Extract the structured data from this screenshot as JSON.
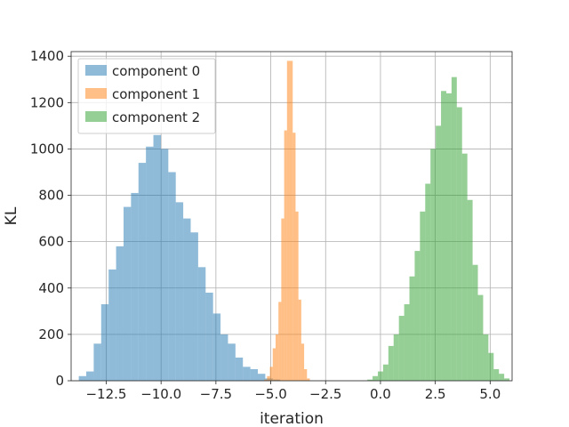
{
  "chart_data": {
    "type": "bar",
    "title": "",
    "xlabel": "iteration",
    "ylabel": "KL",
    "xlim": [
      -14.1,
      6.0
    ],
    "ylim": [
      0,
      1420
    ],
    "grid": true,
    "legend_placement": "top-left",
    "xticks": [
      -12.5,
      -10.0,
      -7.5,
      -5.0,
      -2.5,
      0.0,
      2.5,
      5.0
    ],
    "xtick_labels": [
      "−12.5",
      "−10.0",
      "−7.5",
      "−5.0",
      "−2.5",
      "0.0",
      "2.5",
      "5.0"
    ],
    "yticks": [
      0,
      200,
      400,
      600,
      800,
      1000,
      1200,
      1400
    ],
    "ytick_labels": [
      "0",
      "200",
      "400",
      "600",
      "800",
      "1000",
      "1200",
      "1400"
    ],
    "series": [
      {
        "name": "component 0",
        "color": "#1f77b4",
        "bin_start": -13.75,
        "bin_width": 0.34,
        "counts": [
          20,
          40,
          160,
          330,
          480,
          580,
          750,
          810,
          940,
          1010,
          1060,
          1000,
          900,
          770,
          700,
          640,
          490,
          380,
          290,
          200,
          160,
          100,
          60,
          50,
          30,
          10,
          5
        ]
      },
      {
        "name": "component 1",
        "color": "#ff7f0e",
        "bin_start": -5.3,
        "bin_width": 0.13,
        "counts": [
          5,
          20,
          60,
          140,
          200,
          340,
          700,
          1080,
          1380,
          1380,
          1070,
          730,
          350,
          160,
          50,
          10
        ]
      },
      {
        "name": "component 2",
        "color": "#2ca02c",
        "bin_start": -0.6,
        "bin_width": 0.24,
        "counts": [
          5,
          20,
          40,
          70,
          150,
          200,
          280,
          330,
          450,
          560,
          730,
          850,
          1000,
          1100,
          1250,
          1240,
          1310,
          1180,
          980,
          780,
          500,
          370,
          200,
          120,
          50,
          30,
          10
        ]
      }
    ]
  }
}
